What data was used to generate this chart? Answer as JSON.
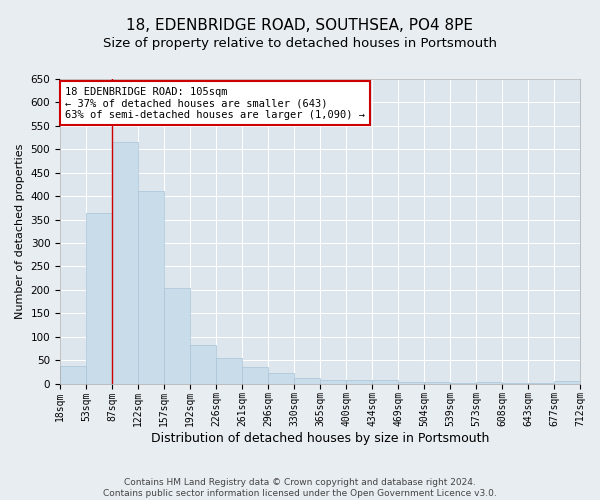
{
  "title": "18, EDENBRIDGE ROAD, SOUTHSEA, PO4 8PE",
  "subtitle": "Size of property relative to detached houses in Portsmouth",
  "xlabel": "Distribution of detached houses by size in Portsmouth",
  "ylabel": "Number of detached properties",
  "bar_values": [
    37,
    365,
    515,
    410,
    205,
    82,
    55,
    35,
    22,
    12,
    8,
    8,
    8,
    3,
    3,
    1,
    3,
    1,
    1,
    5
  ],
  "bar_labels": [
    "18sqm",
    "53sqm",
    "87sqm",
    "122sqm",
    "157sqm",
    "192sqm",
    "226sqm",
    "261sqm",
    "296sqm",
    "330sqm",
    "365sqm",
    "400sqm",
    "434sqm",
    "469sqm",
    "504sqm",
    "539sqm",
    "573sqm",
    "608sqm",
    "643sqm",
    "677sqm",
    "712sqm"
  ],
  "bar_color": "#c9dcea",
  "bar_edge_color": "#a8c4d8",
  "bar_edge_width": 0.5,
  "ylim": [
    0,
    650
  ],
  "yticks": [
    0,
    50,
    100,
    150,
    200,
    250,
    300,
    350,
    400,
    450,
    500,
    550,
    600,
    650
  ],
  "property_line_x": 2.0,
  "property_line_color": "#cc0000",
  "annotation_text": "18 EDENBRIDGE ROAD: 105sqm\n← 37% of detached houses are smaller (643)\n63% of semi-detached houses are larger (1,090) →",
  "annotation_box_color": "#ffffff",
  "annotation_box_edge_color": "#cc0000",
  "footer_line1": "Contains HM Land Registry data © Crown copyright and database right 2024.",
  "footer_line2": "Contains public sector information licensed under the Open Government Licence v3.0.",
  "background_color": "#e8edf2",
  "plot_background_color": "#dde5ed",
  "grid_color": "#ffffff",
  "title_fontsize": 11,
  "subtitle_fontsize": 9.5,
  "tick_label_fontsize": 7,
  "xlabel_fontsize": 9,
  "ylabel_fontsize": 8,
  "footer_fontsize": 6.5,
  "annotation_fontsize": 7.5
}
